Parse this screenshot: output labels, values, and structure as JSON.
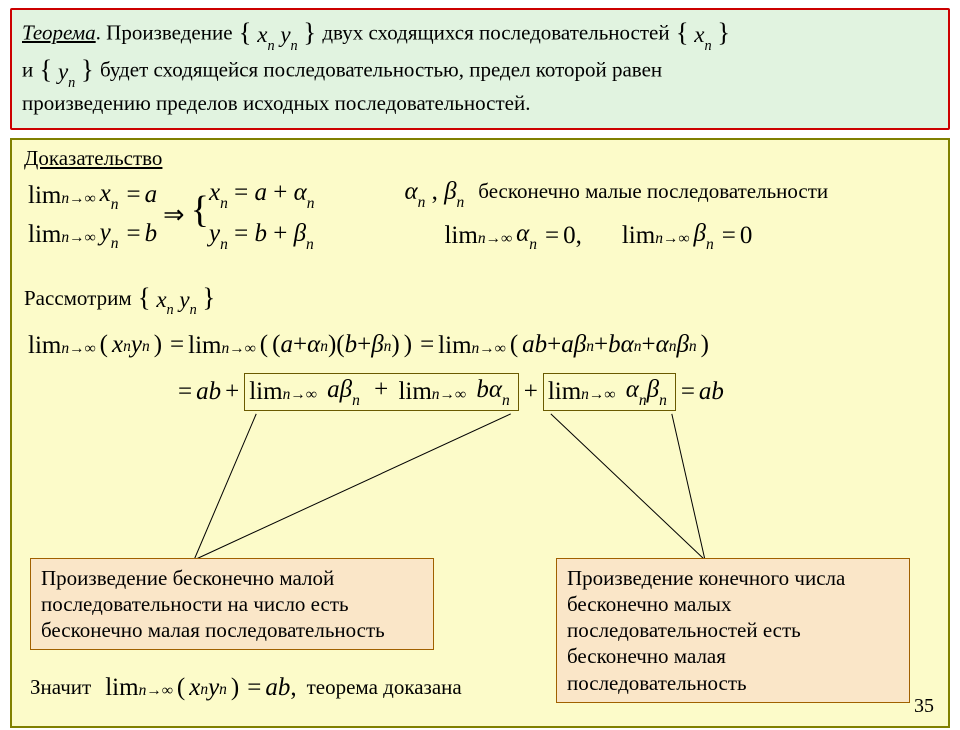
{
  "colors": {
    "theorem_bg": "#e1f3e0",
    "theorem_border": "#cc0000",
    "proof_bg": "#fcfbc9",
    "proof_border": "#808000",
    "ann_bg": "#fae6c8",
    "ann_border": "#a06000",
    "text": "#000000"
  },
  "theorem": {
    "label": "Теорема",
    "seq_xy": "xₙ yₙ",
    "seq_x": "xₙ",
    "seq_y": "yₙ",
    "line1_before": ". Произведение ",
    "line1_after": " двух сходящихся последовательностей ",
    "line2_before": "и ",
    "line2_after": " будет сходящейся последовательностью, предел которой равен",
    "line3": "произведению пределов исходных последовательностей."
  },
  "proof": {
    "title": "Доказательство",
    "lim_x": "lim xₙ = a",
    "lim_y": "lim yₙ = b",
    "ninf": "n→∞",
    "xn_eq": "xₙ = a + αₙ",
    "yn_eq": "yₙ = b + βₙ",
    "ab_symbols": "αₙ , βₙ",
    "inf_small_label": "бесконечно малые последовательности",
    "lim_a0": "lim αₙ = 0,",
    "lim_b0": "lim βₙ = 0",
    "consider": "Рассмотрим",
    "seq_xy": "xₙ yₙ",
    "chain1": "lim ( xₙ yₙ ) = lim ( ( a + αₙ )( b + βₙ ) ) = lim ( ab + aβₙ + bαₙ + αₙβₙ )",
    "chain2_pre": "= ab +",
    "chain2_box1": "lim aβₙ  + lim bαₙ",
    "chain2_mid": "+",
    "chain2_box2": "lim αₙβₙ",
    "chain2_post": "= ab",
    "ann_left": "Произведение бесконечно малой последовательности на число есть бесконечно малая последовательность",
    "ann_right": "Произведение конечного числа бесконечно малых последовательностей есть бесконечно малая последовательность",
    "therefore": "Значит",
    "final": "lim ( xₙ yₙ ) = ab,",
    "qed": "теорема доказана"
  },
  "page_number": "35"
}
